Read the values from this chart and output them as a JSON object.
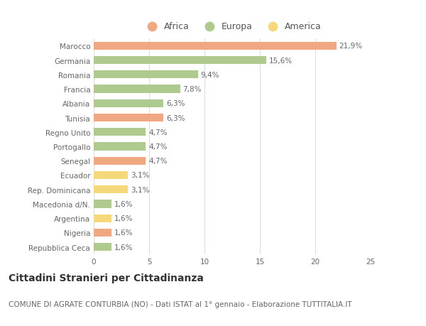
{
  "countries": [
    "Marocco",
    "Germania",
    "Romania",
    "Francia",
    "Albania",
    "Tunisia",
    "Regno Unito",
    "Portogallo",
    "Senegal",
    "Ecuador",
    "Rep. Dominicana",
    "Macedonia d/N.",
    "Argentina",
    "Nigeria",
    "Repubblica Ceca"
  ],
  "values": [
    21.9,
    15.6,
    9.4,
    7.8,
    6.3,
    6.3,
    4.7,
    4.7,
    4.7,
    3.1,
    3.1,
    1.6,
    1.6,
    1.6,
    1.6
  ],
  "labels": [
    "21,9%",
    "15,6%",
    "9,4%",
    "7,8%",
    "6,3%",
    "6,3%",
    "4,7%",
    "4,7%",
    "4,7%",
    "3,1%",
    "3,1%",
    "1,6%",
    "1,6%",
    "1,6%",
    "1,6%"
  ],
  "categories": [
    "Africa",
    "Europa",
    "America"
  ],
  "continent": [
    "Africa",
    "Europa",
    "Europa",
    "Europa",
    "Europa",
    "Africa",
    "Europa",
    "Europa",
    "Africa",
    "America",
    "America",
    "Europa",
    "America",
    "Africa",
    "Europa"
  ],
  "colors": {
    "Africa": "#F0A882",
    "Europa": "#AECA8F",
    "America": "#F5D87A"
  },
  "title": "Cittadini Stranieri per Cittadinanza",
  "subtitle": "COMUNE DI AGRATE CONTURBIA (NO) - Dati ISTAT al 1° gennaio - Elaborazione TUTTITALIA.IT",
  "xlim": [
    0,
    25
  ],
  "xticks": [
    0,
    5,
    10,
    15,
    20,
    25
  ],
  "background_color": "#ffffff",
  "grid_color": "#dddddd",
  "bar_height": 0.55,
  "label_fontsize": 7.5,
  "tick_fontsize": 7.5,
  "title_fontsize": 10,
  "subtitle_fontsize": 7.5,
  "legend_fontsize": 9
}
